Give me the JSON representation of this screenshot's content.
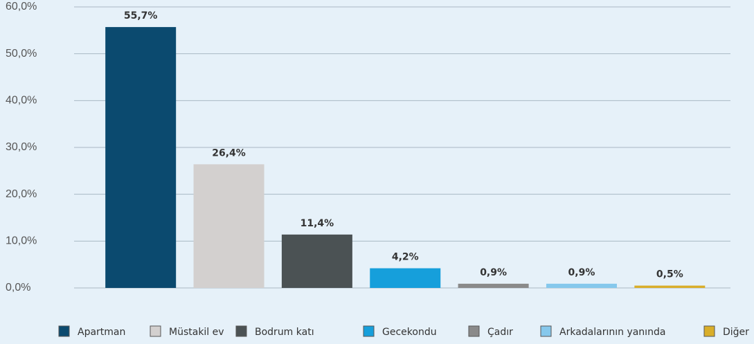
{
  "chart_data": {
    "type": "bar",
    "categories": [
      "Apartman",
      "Müstakil ev",
      "Bodrum katı",
      "Gecekondu",
      "Çadır",
      "Arkadalarının yanında",
      "Diğer"
    ],
    "values": [
      55.7,
      26.4,
      11.4,
      4.2,
      0.9,
      0.9,
      0.5
    ],
    "value_labels": [
      "55,7%",
      "26,4%",
      "11,4%",
      "4,2%",
      "0,9%",
      "0,9%",
      "0,5%"
    ],
    "colors": [
      "#0b4a6f",
      "#d3d0cf",
      "#4b5254",
      "#169fdb",
      "#8a8a8a",
      "#86c8ec",
      "#d9ae2a"
    ],
    "ylim": [
      0,
      60
    ],
    "yticks": [
      {
        "value": 0,
        "label": "0,0%"
      },
      {
        "value": 10,
        "label": "10,0%"
      },
      {
        "value": 20,
        "label": "20,0%"
      },
      {
        "value": 30,
        "label": "30,0%"
      },
      {
        "value": 40,
        "label": "40,0%"
      },
      {
        "value": 50,
        "label": "50,0%"
      },
      {
        "value": 60,
        "label": "60,0%"
      }
    ],
    "grid": true,
    "legend": "bottom"
  }
}
